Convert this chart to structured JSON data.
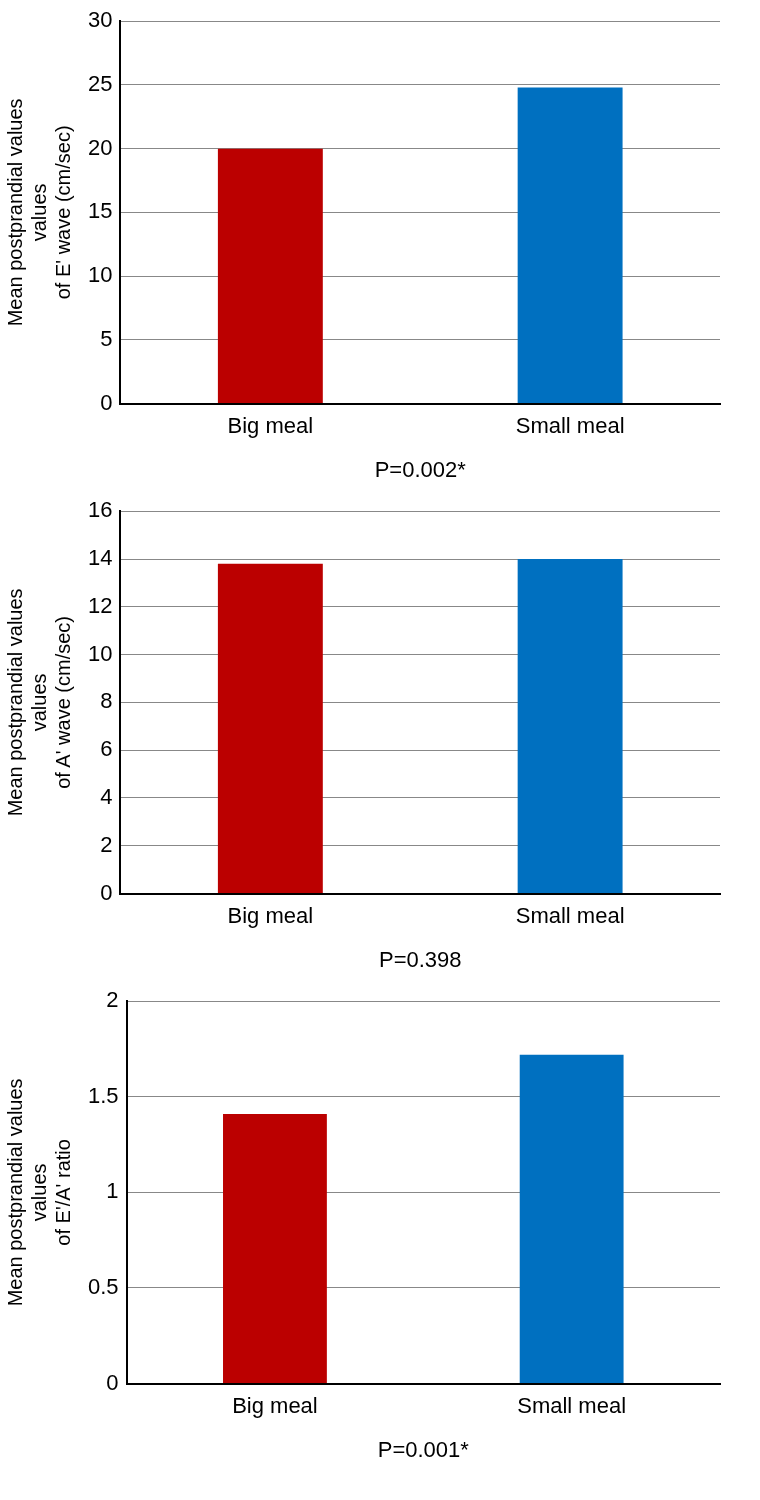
{
  "chart_data": [
    {
      "type": "bar",
      "ylabel": "Mean postprandial values\nvalues\nof E' wave (cm/sec)",
      "categories": [
        "Big meal",
        "Small meal"
      ],
      "values": [
        20,
        24.8
      ],
      "colors": [
        "#bb0000",
        "#0070c0"
      ],
      "ylim": [
        0,
        30
      ],
      "yticks": [
        0,
        5,
        10,
        15,
        20,
        25,
        30
      ],
      "grid": "y",
      "annotations": [
        "P=0.002*"
      ]
    },
    {
      "type": "bar",
      "ylabel": "Mean postprandial values\nvalues\nof A' wave (cm/sec)",
      "categories": [
        "Big meal",
        "Small meal"
      ],
      "values": [
        13.8,
        14.0
      ],
      "colors": [
        "#bb0000",
        "#0070c0"
      ],
      "ylim": [
        0,
        16
      ],
      "yticks": [
        0,
        2,
        4,
        6,
        8,
        10,
        12,
        14,
        16
      ],
      "grid": "y",
      "annotations": [
        "P=0.398"
      ]
    },
    {
      "type": "bar",
      "ylabel": "Mean postprandial values\nvalues\nof E'/A' ratio",
      "categories": [
        "Big meal",
        "Small meal"
      ],
      "values": [
        1.41,
        1.72
      ],
      "colors": [
        "#bb0000",
        "#0070c0"
      ],
      "ylim": [
        0,
        2
      ],
      "yticks": [
        0,
        0.5,
        1,
        1.5,
        2
      ],
      "grid": "y",
      "annotations": [
        "P=0.001*"
      ]
    }
  ]
}
